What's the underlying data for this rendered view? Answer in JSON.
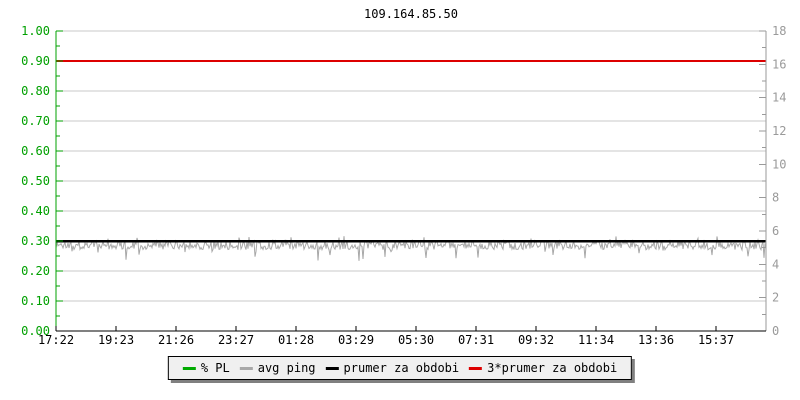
{
  "title": "109.164.85.50",
  "chart_data": {
    "type": "line",
    "title": "109.164.85.50",
    "x_tick_labels": [
      "17:22",
      "19:23",
      "21:26",
      "23:27",
      "01:28",
      "03:29",
      "05:30",
      "07:31",
      "09:32",
      "11:34",
      "13:36",
      "15:37"
    ],
    "left_axis": {
      "min": 0,
      "max": 1,
      "major_step": 0.1,
      "minor_step": 0.05,
      "tick_labels": [
        "1.00",
        "0.90",
        "0.80",
        "0.70",
        "0.60",
        "0.50",
        "0.40",
        "0.30",
        "0.20",
        "0.10",
        "0.00"
      ],
      "color": "#00a000"
    },
    "right_axis": {
      "min": 0,
      "max": 18,
      "major_step": 2,
      "minor_step": 1,
      "tick_labels": [
        "18",
        "16",
        "14",
        "12",
        "10",
        "8",
        "6",
        "4",
        "2",
        "0"
      ],
      "color": "#9a9a9a"
    },
    "grid": {
      "horizontal": true,
      "vertical": false,
      "color": "#c9c9c9"
    },
    "series": [
      {
        "name": "% PL",
        "color": "#00aa00",
        "axis": "left",
        "type": "flat",
        "value": 0
      },
      {
        "name": "avg ping",
        "color": "#a8a8a8",
        "axis": "right",
        "type": "noisy",
        "mean": 5.15,
        "typical_min": 4.3,
        "typical_max": 5.75,
        "dip_min": 4.1,
        "seed": 1337
      },
      {
        "name": "prumer za obdobi",
        "color": "#000000",
        "axis": "right",
        "type": "flat",
        "value": 5.4
      },
      {
        "name": "3*prumer za obdobi",
        "color": "#dd0000",
        "axis": "right",
        "type": "flat",
        "value": 16.2
      }
    ],
    "legend_position": "bottom-center"
  },
  "legend": {
    "items": [
      {
        "label": "% PL",
        "color": "#00aa00"
      },
      {
        "label": "avg ping",
        "color": "#a8a8a8"
      },
      {
        "label": "prumer za obdobi",
        "color": "#000000"
      },
      {
        "label": "3*prumer za obdobi",
        "color": "#dd0000"
      }
    ]
  }
}
